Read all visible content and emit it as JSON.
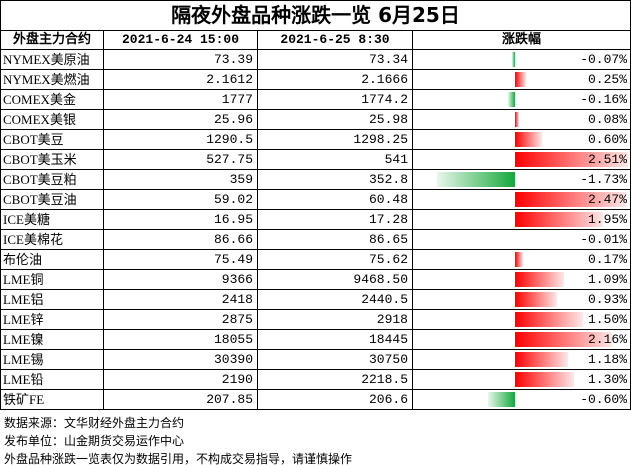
{
  "header": {
    "title": "隔夜外盘品种涨跌一览 6月25日"
  },
  "table": {
    "columns": [
      "外盘主力合约",
      "2021-6-24 15:00",
      "2021-6-25 8:30",
      "涨跌幅"
    ],
    "rows": [
      {
        "name": "NYMEX美原油",
        "prev": "73.39",
        "curr": "73.34",
        "change": -0.07,
        "change_label": "-0.07%"
      },
      {
        "name": "NYMEX美燃油",
        "prev": "2.1612",
        "curr": "2.1666",
        "change": 0.25,
        "change_label": "0.25%"
      },
      {
        "name": "COMEX美金",
        "prev": "1777",
        "curr": "1774.2",
        "change": -0.16,
        "change_label": "-0.16%"
      },
      {
        "name": "COMEX美银",
        "prev": "25.96",
        "curr": "25.98",
        "change": 0.08,
        "change_label": "0.08%"
      },
      {
        "name": "CBOT美豆",
        "prev": "1290.5",
        "curr": "1298.25",
        "change": 0.6,
        "change_label": "0.60%"
      },
      {
        "name": "CBOT美玉米",
        "prev": "527.75",
        "curr": "541",
        "change": 2.51,
        "change_label": "2.51%"
      },
      {
        "name": "CBOT美豆粕",
        "prev": "359",
        "curr": "352.8",
        "change": -1.73,
        "change_label": "-1.73%"
      },
      {
        "name": "CBOT美豆油",
        "prev": "59.02",
        "curr": "60.48",
        "change": 2.47,
        "change_label": "2.47%"
      },
      {
        "name": "ICE美糖",
        "prev": "16.95",
        "curr": "17.28",
        "change": 1.95,
        "change_label": "1.95%"
      },
      {
        "name": "ICE美棉花",
        "prev": "86.66",
        "curr": "86.65",
        "change": -0.01,
        "change_label": "-0.01%"
      },
      {
        "name": "布伦油",
        "prev": "75.49",
        "curr": "75.62",
        "change": 0.17,
        "change_label": "0.17%"
      },
      {
        "name": "LME铜",
        "prev": "9366",
        "curr": "9468.50",
        "change": 1.09,
        "change_label": "1.09%"
      },
      {
        "name": "LME铝",
        "prev": "2418",
        "curr": "2440.5",
        "change": 0.93,
        "change_label": "0.93%"
      },
      {
        "name": "LME锌",
        "prev": "2875",
        "curr": "2918",
        "change": 1.5,
        "change_label": "1.50%"
      },
      {
        "name": "LME镍",
        "prev": "18055",
        "curr": "18445",
        "change": 2.16,
        "change_label": "2.16%"
      },
      {
        "name": "LME锡",
        "prev": "30390",
        "curr": "30750",
        "change": 1.18,
        "change_label": "1.18%"
      },
      {
        "name": "LME铅",
        "prev": "2190",
        "curr": "2218.5",
        "change": 1.3,
        "change_label": "1.30%"
      },
      {
        "name": "铁矿FE",
        "prev": "207.85",
        "curr": "206.6",
        "change": -0.6,
        "change_label": "-0.60%"
      }
    ]
  },
  "footer": {
    "lines": [
      "数据来源：文华财经外盘主力合约",
      "发布单位：山金期货交易运作中心",
      "外盘品种涨跌一览表仅为数据引用，不构成交易指导，请谨慎操作"
    ]
  }
}
